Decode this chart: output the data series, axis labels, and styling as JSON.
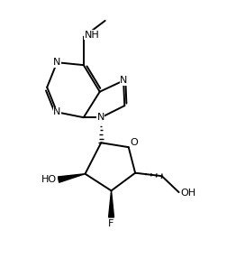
{
  "bg_color": "#ffffff",
  "lw": 1.4,
  "fs": 8.0,
  "xlim": [
    0,
    10
  ],
  "ylim": [
    0,
    11.4
  ],
  "figsize": [
    2.52,
    2.86
  ],
  "dpi": 100
}
